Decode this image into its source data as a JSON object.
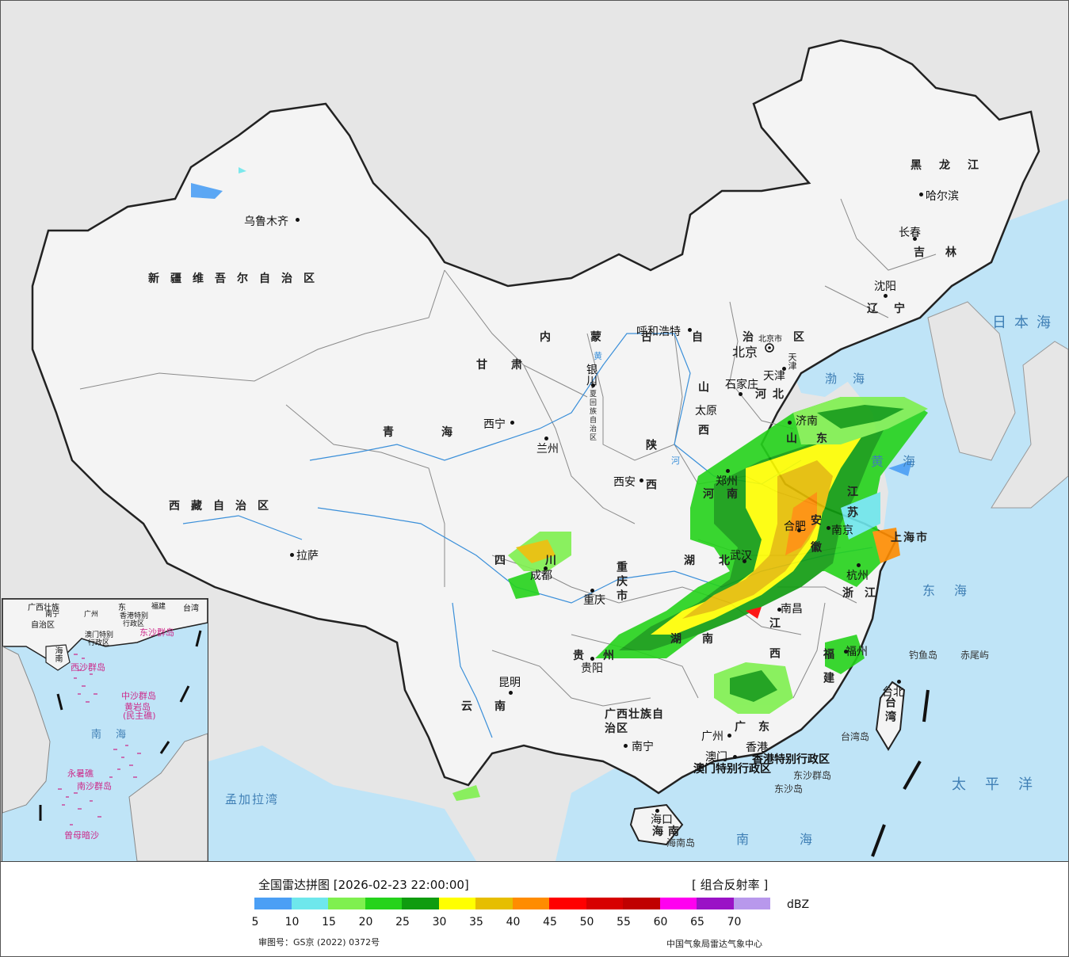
{
  "map": {
    "provinces": [
      {
        "id": "xinjiang",
        "text": "新疆维吾尔自治区"
      },
      {
        "id": "xizang",
        "text": "西藏自治区"
      },
      {
        "id": "qinghai",
        "text": "青海"
      },
      {
        "id": "gansu",
        "text": "甘肃"
      },
      {
        "id": "neimenggu",
        "text": "内蒙古自治区"
      },
      {
        "id": "heilongjiang",
        "text": "黑龙江"
      },
      {
        "id": "jilin",
        "text": "吉林"
      },
      {
        "id": "liaoning",
        "text": "辽宁"
      },
      {
        "id": "hebei",
        "text": "河北"
      },
      {
        "id": "shanxi",
        "text": "山西"
      },
      {
        "id": "shaanxi",
        "text": "陕西"
      },
      {
        "id": "ningxia",
        "text": "宁夏回族自治区"
      },
      {
        "id": "henan",
        "text": "河南"
      },
      {
        "id": "shandong",
        "text": "山东"
      },
      {
        "id": "jiangsu",
        "text": "江苏"
      },
      {
        "id": "anhui",
        "text": "安徽"
      },
      {
        "id": "shanghai",
        "text": "上海市"
      },
      {
        "id": "zhejiang",
        "text": "浙江"
      },
      {
        "id": "hubei",
        "text": "湖北"
      },
      {
        "id": "hunan",
        "text": "湖南"
      },
      {
        "id": "jiangxi",
        "text": "江西"
      },
      {
        "id": "fujian",
        "text": "福建"
      },
      {
        "id": "sichuan",
        "text": "四川"
      },
      {
        "id": "chongqing",
        "text": "重庆市"
      },
      {
        "id": "guizhou",
        "text": "贵州"
      },
      {
        "id": "yunnan",
        "text": "云南"
      },
      {
        "id": "guangxi",
        "text": "广西壮族自治区"
      },
      {
        "id": "guangdong",
        "text": "广东"
      },
      {
        "id": "hainan",
        "text": "海南"
      },
      {
        "id": "taiwan",
        "text": "台湾"
      },
      {
        "id": "tianjin",
        "text": "天津"
      }
    ],
    "cities": [
      {
        "id": "wulumuqi",
        "text": "乌鲁木齐"
      },
      {
        "id": "lasa",
        "text": "拉萨"
      },
      {
        "id": "xining",
        "text": "西宁"
      },
      {
        "id": "lanzhou",
        "text": "兰州"
      },
      {
        "id": "yinchuan",
        "text": "银川"
      },
      {
        "id": "huhehaote",
        "text": "呼和浩特"
      },
      {
        "id": "haerbin",
        "text": "哈尔滨"
      },
      {
        "id": "changchun",
        "text": "长春"
      },
      {
        "id": "shenyang",
        "text": "沈阳"
      },
      {
        "id": "beijing",
        "text": "北京"
      },
      {
        "id": "beijingshi",
        "text": "北京市"
      },
      {
        "id": "tianjin",
        "text": "天津"
      },
      {
        "id": "shijiazhuang",
        "text": "石家庄"
      },
      {
        "id": "taiyuan",
        "text": "太原"
      },
      {
        "id": "xian",
        "text": "西安"
      },
      {
        "id": "jinan",
        "text": "济南"
      },
      {
        "id": "zhengzhou",
        "text": "郑州"
      },
      {
        "id": "hefei",
        "text": "合肥"
      },
      {
        "id": "nanjing",
        "text": "南京"
      },
      {
        "id": "hangzhou",
        "text": "杭州"
      },
      {
        "id": "wuhan",
        "text": "武汉"
      },
      {
        "id": "nanchang",
        "text": "南昌"
      },
      {
        "id": "fuzhou",
        "text": "福州"
      },
      {
        "id": "chengdu",
        "text": "成都"
      },
      {
        "id": "chongqing",
        "text": "重庆"
      },
      {
        "id": "guiyang",
        "text": "贵阳"
      },
      {
        "id": "kunming",
        "text": "昆明"
      },
      {
        "id": "nanning",
        "text": "南宁"
      },
      {
        "id": "guangzhou",
        "text": "广州"
      },
      {
        "id": "xianggang",
        "text": "香港"
      },
      {
        "id": "aomen",
        "text": "澳门"
      },
      {
        "id": "haikou",
        "text": "海口"
      },
      {
        "id": "taibei",
        "text": "台北"
      }
    ],
    "special": {
      "hk": "香港特别行政区",
      "macau": "澳门特别行政区",
      "huangshui": "黄",
      "heshui": "河"
    },
    "seas": {
      "ribenhai": "日本海",
      "bohai": "渤海",
      "huanghai": "黄海",
      "donghai": "东海",
      "taipingyang": "太平洋",
      "nanhai": "南海",
      "mengjialawan": "孟加拉湾"
    },
    "islands": {
      "diaoyu": "钓鱼岛",
      "chiwei": "赤尾屿",
      "taiwan_dao": "台湾岛",
      "hainan_dao": "海南岛",
      "dongsha_qundao": "东沙群岛",
      "dongsha_dao": "东沙岛"
    }
  },
  "inset": {
    "labels": {
      "guangxi": "广西壮族",
      "guangxi2": "自治区",
      "nanning": "南宁",
      "guangdong": "东",
      "fujian": "福建",
      "taiwan": "台湾",
      "guangzhou": "广州",
      "xianggang": "香港特别",
      "xianggang2": "行政区",
      "aomen": "澳门特别",
      "aomen2": "行政区",
      "dongsha": "东沙群岛",
      "hainan": "海南",
      "xisha": "西沙群岛",
      "zhongsha": "中沙群岛",
      "huangyan": "黄岩岛",
      "huangyan2": "(民主礁)",
      "nanhai": "南海",
      "yongshu": "永暑礁",
      "nansha": "南沙群岛",
      "zengmu": "曾母暗沙"
    }
  },
  "legend": {
    "title": "全国雷达拼图 [2026-02-23 22:00:00]",
    "product": "[ 组合反射率 ]",
    "unit": "dBZ",
    "colors": [
      "#4b9ff5",
      "#6ee7ec",
      "#7ff04f",
      "#25d31b",
      "#0f9c0f",
      "#ffff00",
      "#e6be00",
      "#ff8c00",
      "#ff0000",
      "#d70000",
      "#c00000",
      "#ff00f0",
      "#9a12c6",
      "#b898ec"
    ],
    "ticks": [
      "5",
      "10",
      "15",
      "20",
      "25",
      "30",
      "35",
      "40",
      "45",
      "50",
      "55",
      "60",
      "65",
      "70"
    ],
    "approval": "审图号：GS京 (2022) 0372号",
    "credit": "中国气象局雷达气象中心"
  }
}
